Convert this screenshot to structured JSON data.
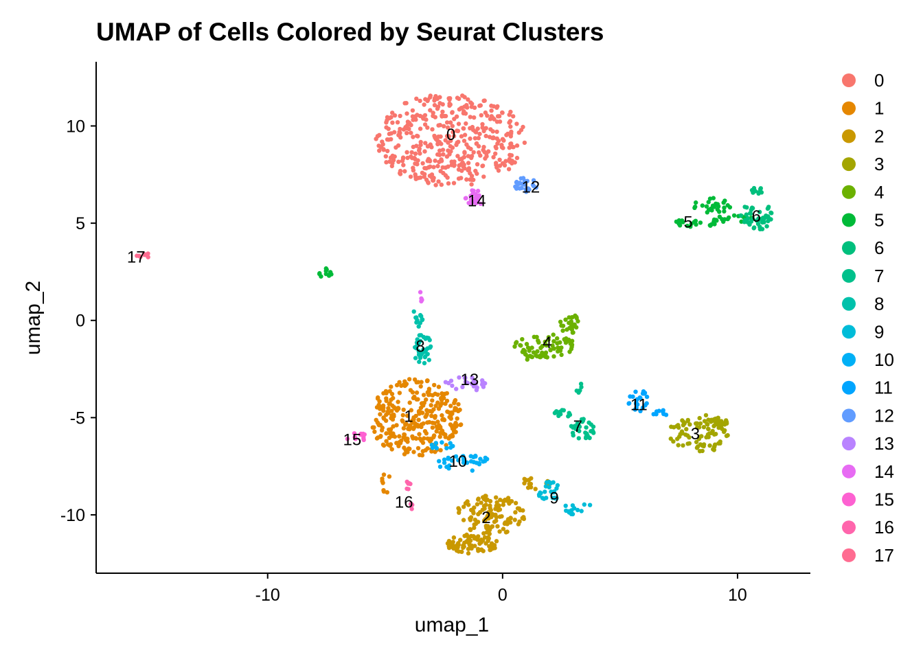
{
  "chart_data": {
    "type": "scatter",
    "title": "UMAP of Cells Colored by Seurat Clusters",
    "xlabel": "umap_1",
    "ylabel": "umap_2",
    "xlim": [
      -17.3,
      13.1
    ],
    "ylim": [
      -13.0,
      13.3
    ],
    "xticks": [
      -10,
      0,
      10
    ],
    "yticks": [
      -10,
      -5,
      0,
      5,
      10
    ],
    "grid": false,
    "legend_position": "right",
    "clusters": [
      {
        "name": "0",
        "color": "#F8766D",
        "label_pos": [
          -2.2,
          9.5
        ],
        "blobs": [
          {
            "cx": -2.2,
            "cy": 9.3,
            "rx": 3.2,
            "ry": 2.4,
            "n": 420
          }
        ]
      },
      {
        "name": "1",
        "color": "#E58700",
        "label_pos": [
          -4.0,
          -5.0
        ],
        "blobs": [
          {
            "cx": -3.7,
            "cy": -5.0,
            "rx": 2.0,
            "ry": 2.0,
            "n": 300
          },
          {
            "cx": -5.0,
            "cy": -8.0,
            "rx": 0.2,
            "ry": 1.0,
            "n": 8
          }
        ]
      },
      {
        "name": "2",
        "color": "#C99800",
        "label_pos": [
          -0.7,
          -10.2
        ],
        "blobs": [
          {
            "cx": -0.5,
            "cy": -10.0,
            "rx": 1.5,
            "ry": 1.0,
            "n": 120
          },
          {
            "cx": -1.3,
            "cy": -11.5,
            "rx": 1.1,
            "ry": 0.5,
            "n": 80
          },
          {
            "cx": 1.3,
            "cy": -8.4,
            "rx": 0.8,
            "ry": 0.3,
            "n": 15
          }
        ]
      },
      {
        "name": "3",
        "color": "#A3A500",
        "label_pos": [
          8.2,
          -5.9
        ],
        "blobs": [
          {
            "cx": 8.4,
            "cy": -5.8,
            "rx": 1.3,
            "ry": 1.0,
            "n": 90
          },
          {
            "cx": 9.2,
            "cy": -5.3,
            "rx": 0.5,
            "ry": 0.3,
            "n": 15
          }
        ]
      },
      {
        "name": "4",
        "color": "#6BB100",
        "label_pos": [
          1.9,
          -1.2
        ],
        "blobs": [
          {
            "cx": 1.8,
            "cy": -1.3,
            "rx": 1.3,
            "ry": 0.6,
            "n": 60
          },
          {
            "cx": 2.9,
            "cy": -0.2,
            "rx": 0.5,
            "ry": 0.5,
            "n": 25
          },
          {
            "cx": 1.2,
            "cy": -1.8,
            "rx": 0.4,
            "ry": 0.3,
            "n": 10
          }
        ]
      },
      {
        "name": "5",
        "color": "#00BA38",
        "label_pos": [
          7.9,
          5.0
        ],
        "blobs": [
          {
            "cx": 8.2,
            "cy": 5.0,
            "rx": 1.0,
            "ry": 0.2,
            "n": 20
          },
          {
            "cx": 8.9,
            "cy": 5.9,
            "rx": 0.8,
            "ry": 0.4,
            "n": 25
          },
          {
            "cx": 9.9,
            "cy": 5.2,
            "rx": 0.9,
            "ry": 0.2,
            "n": 18
          },
          {
            "cx": -7.5,
            "cy": 2.4,
            "rx": 0.3,
            "ry": 0.3,
            "n": 12
          }
        ]
      },
      {
        "name": "6",
        "color": "#00BF7D",
        "label_pos": [
          10.8,
          5.3
        ],
        "blobs": [
          {
            "cx": 10.8,
            "cy": 5.4,
            "rx": 0.7,
            "ry": 0.8,
            "n": 45
          },
          {
            "cx": 10.8,
            "cy": 6.7,
            "rx": 0.3,
            "ry": 0.2,
            "n": 10
          }
        ]
      },
      {
        "name": "7",
        "color": "#00C08B",
        "label_pos": [
          3.2,
          -5.5
        ],
        "blobs": [
          {
            "cx": 3.4,
            "cy": -5.6,
            "rx": 0.5,
            "ry": 0.6,
            "n": 30
          },
          {
            "cx": 2.5,
            "cy": -4.8,
            "rx": 0.4,
            "ry": 0.2,
            "n": 12
          },
          {
            "cx": 3.2,
            "cy": -3.3,
            "rx": 0.2,
            "ry": 0.5,
            "n": 5
          }
        ]
      },
      {
        "name": "8",
        "color": "#00C1AB",
        "label_pos": [
          -3.5,
          -1.4
        ],
        "blobs": [
          {
            "cx": -3.4,
            "cy": -1.5,
            "rx": 0.4,
            "ry": 0.8,
            "n": 35
          },
          {
            "cx": -3.6,
            "cy": 0.2,
            "rx": 0.2,
            "ry": 0.6,
            "n": 12
          }
        ]
      },
      {
        "name": "9",
        "color": "#00BCD8",
        "label_pos": [
          2.2,
          -9.2
        ],
        "blobs": [
          {
            "cx": 2.0,
            "cy": -8.8,
            "rx": 0.5,
            "ry": 0.5,
            "n": 25
          },
          {
            "cx": 3.3,
            "cy": -9.7,
            "rx": 0.8,
            "ry": 0.3,
            "n": 15
          }
        ]
      },
      {
        "name": "10",
        "color": "#00B0F6",
        "label_pos": [
          -1.9,
          -7.3
        ],
        "blobs": [
          {
            "cx": -1.6,
            "cy": -7.3,
            "rx": 1.2,
            "ry": 0.5,
            "n": 35
          },
          {
            "cx": -2.6,
            "cy": -6.4,
            "rx": 0.6,
            "ry": 0.2,
            "n": 10
          }
        ]
      },
      {
        "name": "11",
        "color": "#00A5FF",
        "label_pos": [
          5.8,
          -4.4
        ],
        "blobs": [
          {
            "cx": 5.8,
            "cy": -4.2,
            "rx": 0.5,
            "ry": 0.6,
            "n": 22
          },
          {
            "cx": 6.9,
            "cy": -4.8,
            "rx": 0.5,
            "ry": 0.2,
            "n": 8
          }
        ]
      },
      {
        "name": "12",
        "color": "#619CFF",
        "label_pos": [
          1.2,
          6.8
        ],
        "blobs": [
          {
            "cx": 1.0,
            "cy": 7.0,
            "rx": 0.5,
            "ry": 0.4,
            "n": 25
          }
        ]
      },
      {
        "name": "13",
        "color": "#B983FF",
        "label_pos": [
          -1.4,
          -3.1
        ],
        "blobs": [
          {
            "cx": -1.6,
            "cy": -3.3,
            "rx": 0.9,
            "ry": 0.4,
            "n": 25
          }
        ]
      },
      {
        "name": "14",
        "color": "#E76BF3",
        "label_pos": [
          -1.1,
          6.1
        ],
        "blobs": [
          {
            "cx": -1.2,
            "cy": 6.3,
            "rx": 0.4,
            "ry": 0.4,
            "n": 25
          },
          {
            "cx": -3.5,
            "cy": 1.2,
            "rx": 0.1,
            "ry": 0.3,
            "n": 4
          }
        ]
      },
      {
        "name": "15",
        "color": "#FD61D1",
        "label_pos": [
          -6.4,
          -6.2
        ],
        "blobs": [
          {
            "cx": -6.2,
            "cy": -6.0,
            "rx": 0.5,
            "ry": 0.2,
            "n": 12
          }
        ]
      },
      {
        "name": "16",
        "color": "#FF65AC",
        "label_pos": [
          -4.2,
          -9.4
        ],
        "blobs": [
          {
            "cx": -4.0,
            "cy": -8.5,
            "rx": 0.1,
            "ry": 0.3,
            "n": 6
          },
          {
            "cx": -3.9,
            "cy": -9.6,
            "rx": 0.1,
            "ry": 0.2,
            "n": 4
          }
        ]
      },
      {
        "name": "17",
        "color": "#FF6C91",
        "label_pos": [
          -15.6,
          3.2
        ],
        "blobs": [
          {
            "cx": -15.3,
            "cy": 3.3,
            "rx": 0.3,
            "ry": 0.2,
            "n": 8
          }
        ]
      }
    ]
  }
}
